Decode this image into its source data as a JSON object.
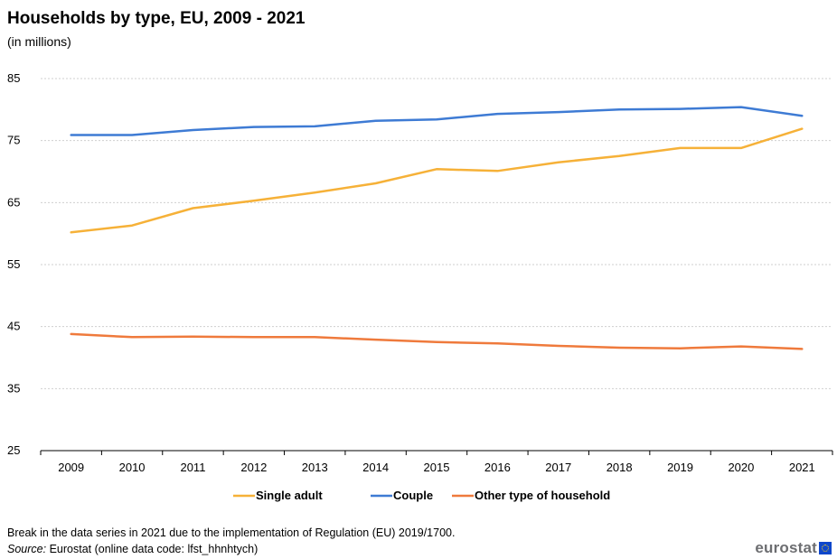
{
  "header": {
    "title": "Households by type, EU, 2009 - 2021",
    "subtitle": "(in millions)"
  },
  "footer": {
    "note": "Break in the data series in 2021 due to the implementation of Regulation (EU) 2019/1700.",
    "source_label": "Source:",
    "source_text": " Eurostat (online data code: lfst_hhnhtych)",
    "logo_text": "eurostat"
  },
  "chart_data": {
    "type": "line",
    "title": "Households by type, EU, 2009 - 2021",
    "subtitle": "(in millions)",
    "xlabel": "",
    "ylabel": "",
    "ylim": [
      25,
      85
    ],
    "yticks": [
      25,
      35,
      45,
      55,
      65,
      75,
      85
    ],
    "categories": [
      "2009",
      "2010",
      "2011",
      "2012",
      "2013",
      "2014",
      "2015",
      "2016",
      "2017",
      "2018",
      "2019",
      "2020",
      "2021"
    ],
    "grid": true,
    "legend": "bottom",
    "series": [
      {
        "name": "Single adult",
        "color": "#f6b138",
        "values": [
          60.2,
          61.3,
          64.1,
          65.3,
          66.6,
          68.1,
          70.4,
          70.1,
          71.5,
          72.5,
          73.8,
          73.8,
          76.9
        ]
      },
      {
        "name": "Couple",
        "color": "#3e7bd4",
        "values": [
          75.9,
          75.9,
          76.7,
          77.2,
          77.3,
          78.2,
          78.4,
          79.3,
          79.6,
          80.0,
          80.1,
          80.4,
          79.0
        ]
      },
      {
        "name": "Other type of household",
        "color": "#ef7a3c",
        "values": [
          43.8,
          43.3,
          43.4,
          43.3,
          43.3,
          42.9,
          42.5,
          42.3,
          41.9,
          41.6,
          41.5,
          41.8,
          41.4
        ]
      }
    ]
  }
}
